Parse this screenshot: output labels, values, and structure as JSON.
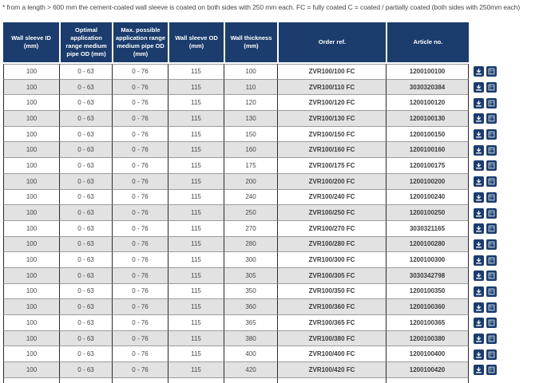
{
  "note": "* from a length > 600 mm the cement-coated wall sleeve is coated on both sides with 250 mm each. FC = fully coated C = coated / partially coated (both sides with 250mm each)",
  "colors": {
    "header_bg": "#1b3c6d",
    "row_alt_bg": "#e2e2e2",
    "icon_bg": "#1b3c6d"
  },
  "table": {
    "columns": [
      {
        "key": "sleeve_id",
        "label": "Wall sleeve ID (mm)"
      },
      {
        "key": "optimal_range",
        "label": "Optimal application range medium pipe OD (mm)"
      },
      {
        "key": "max_range",
        "label": "Max. possible application range medium pipe OD (mm)"
      },
      {
        "key": "sleeve_od",
        "label": "Wall sleeve OD (mm)"
      },
      {
        "key": "thickness",
        "label": "Wall thickness (mm)"
      },
      {
        "key": "order_ref",
        "label": "Order ref.",
        "bold": true
      },
      {
        "key": "article_no",
        "label": "Article no.",
        "bold": true
      }
    ],
    "row_actions": [
      {
        "name": "download",
        "icon": "download-icon"
      },
      {
        "name": "details",
        "icon": "grid-icon"
      }
    ],
    "rows": [
      {
        "sleeve_id": "100",
        "optimal_range": "0 - 63",
        "max_range": "0 - 76",
        "sleeve_od": "115",
        "thickness": "100",
        "order_ref": "ZVR100/100 FC",
        "article_no": "1200100100"
      },
      {
        "sleeve_id": "100",
        "optimal_range": "0 - 63",
        "max_range": "0 - 76",
        "sleeve_od": "115",
        "thickness": "110",
        "order_ref": "ZVR100/110 FC",
        "article_no": "3030320384"
      },
      {
        "sleeve_id": "100",
        "optimal_range": "0 - 63",
        "max_range": "0 - 76",
        "sleeve_od": "115",
        "thickness": "120",
        "order_ref": "ZVR100/120 FC",
        "article_no": "1200100120"
      },
      {
        "sleeve_id": "100",
        "optimal_range": "0 - 63",
        "max_range": "0 - 76",
        "sleeve_od": "115",
        "thickness": "130",
        "order_ref": "ZVR100/130 FC",
        "article_no": "1200100130"
      },
      {
        "sleeve_id": "100",
        "optimal_range": "0 - 63",
        "max_range": "0 - 76",
        "sleeve_od": "115",
        "thickness": "150",
        "order_ref": "ZVR100/150 FC",
        "article_no": "1200100150"
      },
      {
        "sleeve_id": "100",
        "optimal_range": "0 - 63",
        "max_range": "0 - 76",
        "sleeve_od": "115",
        "thickness": "160",
        "order_ref": "ZVR100/160 FC",
        "article_no": "1200100160"
      },
      {
        "sleeve_id": "100",
        "optimal_range": "0 - 63",
        "max_range": "0 - 76",
        "sleeve_od": "115",
        "thickness": "175",
        "order_ref": "ZVR100/175 FC",
        "article_no": "1200100175"
      },
      {
        "sleeve_id": "100",
        "optimal_range": "0 - 63",
        "max_range": "0 - 76",
        "sleeve_od": "115",
        "thickness": "200",
        "order_ref": "ZVR100/200 FC",
        "article_no": "1200100200"
      },
      {
        "sleeve_id": "100",
        "optimal_range": "0 - 63",
        "max_range": "0 - 76",
        "sleeve_od": "115",
        "thickness": "240",
        "order_ref": "ZVR100/240 FC",
        "article_no": "1200100240"
      },
      {
        "sleeve_id": "100",
        "optimal_range": "0 - 63",
        "max_range": "0 - 76",
        "sleeve_od": "115",
        "thickness": "250",
        "order_ref": "ZVR100/250 FC",
        "article_no": "1200100250"
      },
      {
        "sleeve_id": "100",
        "optimal_range": "0 - 63",
        "max_range": "0 - 76",
        "sleeve_od": "115",
        "thickness": "270",
        "order_ref": "ZVR100/270 FC",
        "article_no": "3030321165"
      },
      {
        "sleeve_id": "100",
        "optimal_range": "0 - 63",
        "max_range": "0 - 76",
        "sleeve_od": "115",
        "thickness": "280",
        "order_ref": "ZVR100/280 FC",
        "article_no": "1200100280"
      },
      {
        "sleeve_id": "100",
        "optimal_range": "0 - 63",
        "max_range": "0 - 76",
        "sleeve_od": "115",
        "thickness": "300",
        "order_ref": "ZVR100/300 FC",
        "article_no": "1200100300"
      },
      {
        "sleeve_id": "100",
        "optimal_range": "0 - 63",
        "max_range": "0 - 76",
        "sleeve_od": "115",
        "thickness": "305",
        "order_ref": "ZVR100/305 FC",
        "article_no": "3030342798"
      },
      {
        "sleeve_id": "100",
        "optimal_range": "0 - 63",
        "max_range": "0 - 76",
        "sleeve_od": "115",
        "thickness": "350",
        "order_ref": "ZVR100/350 FC",
        "article_no": "1200100350"
      },
      {
        "sleeve_id": "100",
        "optimal_range": "0 - 63",
        "max_range": "0 - 76",
        "sleeve_od": "115",
        "thickness": "360",
        "order_ref": "ZVR100/360 FC",
        "article_no": "1200100360"
      },
      {
        "sleeve_id": "100",
        "optimal_range": "0 - 63",
        "max_range": "0 - 76",
        "sleeve_od": "115",
        "thickness": "365",
        "order_ref": "ZVR100/365 FC",
        "article_no": "1200100365"
      },
      {
        "sleeve_id": "100",
        "optimal_range": "0 - 63",
        "max_range": "0 - 76",
        "sleeve_od": "115",
        "thickness": "380",
        "order_ref": "ZVR100/380 FC",
        "article_no": "1200100380"
      },
      {
        "sleeve_id": "100",
        "optimal_range": "0 - 63",
        "max_range": "0 - 76",
        "sleeve_od": "115",
        "thickness": "400",
        "order_ref": "ZVR100/400 FC",
        "article_no": "1200100400"
      },
      {
        "sleeve_id": "100",
        "optimal_range": "0 - 63",
        "max_range": "0 - 76",
        "sleeve_od": "115",
        "thickness": "420",
        "order_ref": "ZVR100/420 FC",
        "article_no": "1200100420"
      }
    ]
  }
}
